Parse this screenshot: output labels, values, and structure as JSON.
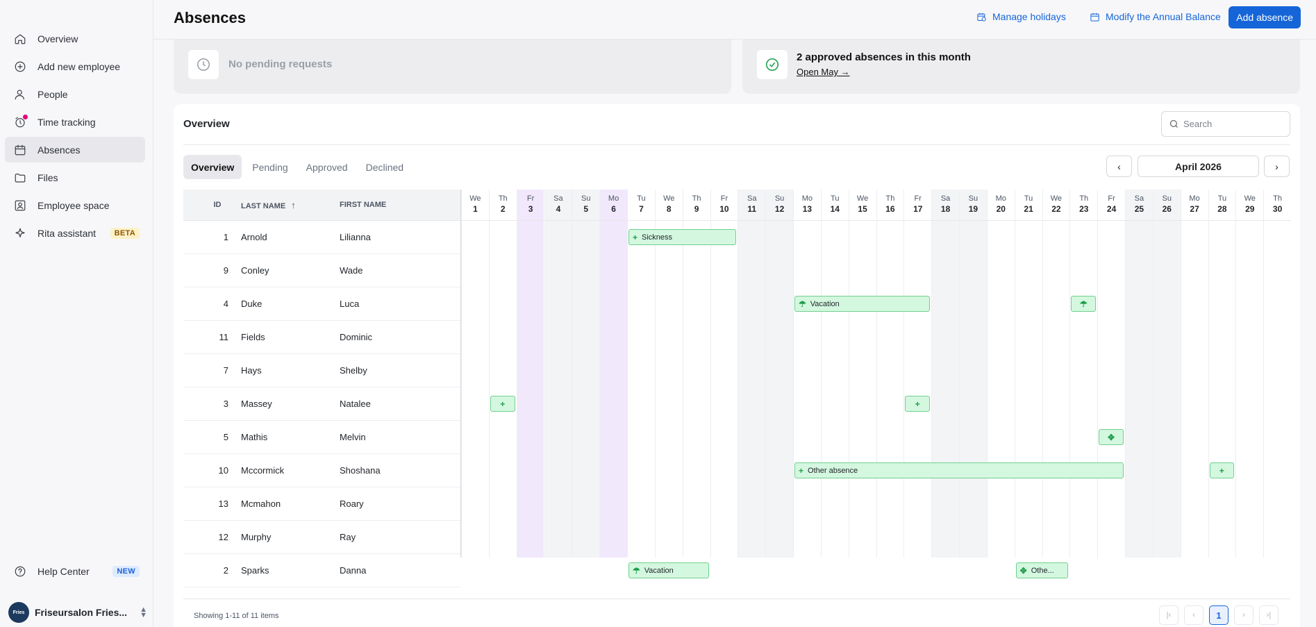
{
  "sidebar": {
    "items": [
      {
        "label": "Overview",
        "icon": "home-icon"
      },
      {
        "label": "Add new employee",
        "icon": "plus-circle-icon"
      },
      {
        "label": "People",
        "icon": "person-icon"
      },
      {
        "label": "Time tracking",
        "icon": "alarm-clock-icon"
      },
      {
        "label": "Absences",
        "icon": "calendar-icon"
      },
      {
        "label": "Files",
        "icon": "folder-icon"
      },
      {
        "label": "Employee space",
        "icon": "id-badge-icon"
      },
      {
        "label": "Rita assistant",
        "icon": "sparkle-icon",
        "badge": "BETA"
      }
    ],
    "help": {
      "label": "Help Center",
      "badge": "NEW"
    },
    "org": {
      "name": "Friseursalon Fries...",
      "logo_text": "Fries"
    }
  },
  "header": {
    "title": "Absences",
    "manage_holidays": "Manage holidays",
    "modify_balance": "Modify the Annual Balance",
    "add_absence": "Add absence"
  },
  "cards": {
    "pending": "No pending requests",
    "approved": "2 approved absences in this month",
    "open_link": "Open May →"
  },
  "overview": {
    "title": "Overview",
    "search_placeholder": "Search",
    "tabs": [
      "Overview",
      "Pending",
      "Approved",
      "Declined"
    ],
    "month": "April 2026",
    "columns": {
      "id": "ID",
      "last_name": "LAST NAME",
      "first_name": "FIRST NAME"
    },
    "rows": [
      {
        "id": "1",
        "last": "Arnold",
        "first": "Lilianna"
      },
      {
        "id": "9",
        "last": "Conley",
        "first": "Wade"
      },
      {
        "id": "4",
        "last": "Duke",
        "first": "Luca"
      },
      {
        "id": "11",
        "last": "Fields",
        "first": "Dominic"
      },
      {
        "id": "7",
        "last": "Hays",
        "first": "Shelby"
      },
      {
        "id": "3",
        "last": "Massey",
        "first": "Natalee"
      },
      {
        "id": "5",
        "last": "Mathis",
        "first": "Melvin"
      },
      {
        "id": "10",
        "last": "Mccormick",
        "first": "Shoshana"
      },
      {
        "id": "13",
        "last": "Mcmahon",
        "first": "Roary"
      },
      {
        "id": "12",
        "last": "Murphy",
        "first": "Ray"
      },
      {
        "id": "2",
        "last": "Sparks",
        "first": "Danna"
      }
    ],
    "days": [
      {
        "dw": "We",
        "dn": "1"
      },
      {
        "dw": "Th",
        "dn": "2"
      },
      {
        "dw": "Fr",
        "dn": "3",
        "holiday": true
      },
      {
        "dw": "Sa",
        "dn": "4",
        "weekend": true
      },
      {
        "dw": "Su",
        "dn": "5",
        "weekend": true
      },
      {
        "dw": "Mo",
        "dn": "6",
        "holiday": true
      },
      {
        "dw": "Tu",
        "dn": "7"
      },
      {
        "dw": "We",
        "dn": "8"
      },
      {
        "dw": "Th",
        "dn": "9"
      },
      {
        "dw": "Fr",
        "dn": "10"
      },
      {
        "dw": "Sa",
        "dn": "11",
        "weekend": true
      },
      {
        "dw": "Su",
        "dn": "12",
        "weekend": true
      },
      {
        "dw": "Mo",
        "dn": "13"
      },
      {
        "dw": "Tu",
        "dn": "14"
      },
      {
        "dw": "We",
        "dn": "15"
      },
      {
        "dw": "Th",
        "dn": "16"
      },
      {
        "dw": "Fr",
        "dn": "17"
      },
      {
        "dw": "Sa",
        "dn": "18",
        "weekend": true
      },
      {
        "dw": "Su",
        "dn": "19",
        "weekend": true
      },
      {
        "dw": "Mo",
        "dn": "20"
      },
      {
        "dw": "Tu",
        "dn": "21"
      },
      {
        "dw": "We",
        "dn": "22"
      },
      {
        "dw": "Th",
        "dn": "23"
      },
      {
        "dw": "Fr",
        "dn": "24"
      },
      {
        "dw": "Sa",
        "dn": "25",
        "weekend": true
      },
      {
        "dw": "Su",
        "dn": "26",
        "weekend": true
      },
      {
        "dw": "Mo",
        "dn": "27"
      },
      {
        "dw": "Tu",
        "dn": "28"
      },
      {
        "dw": "We",
        "dn": "29"
      },
      {
        "dw": "Th",
        "dn": "30"
      }
    ],
    "events": [
      {
        "row": 0,
        "start": 7,
        "end": 10,
        "label": "Sickness",
        "icon": "plus-icon"
      },
      {
        "row": 2,
        "start": 13,
        "end": 17,
        "label": "Vacation",
        "icon": "umbrella-icon"
      },
      {
        "row": 2,
        "start": 23,
        "end": 23,
        "label": "",
        "icon": "umbrella-icon"
      },
      {
        "row": 5,
        "start": 2,
        "end": 2,
        "label": "",
        "icon": "plus-icon"
      },
      {
        "row": 5,
        "start": 17,
        "end": 17,
        "label": "",
        "icon": "plus-icon"
      },
      {
        "row": 6,
        "start": 24,
        "end": 24,
        "label": "",
        "icon": "puzzle-icon"
      },
      {
        "row": 7,
        "start": 13,
        "end": 24,
        "label": "Other absence",
        "icon": "plus-icon"
      },
      {
        "row": 7,
        "start": 28,
        "end": 28,
        "label": "",
        "icon": "plus-icon"
      },
      {
        "row": 10,
        "start": 7,
        "end": 9,
        "label": "Vacation",
        "icon": "umbrella-icon"
      },
      {
        "row": 10,
        "start": 21,
        "end": 22,
        "label": "Othe...",
        "icon": "puzzle-icon"
      }
    ],
    "showing": "Showing 1-11 of 11 items",
    "page": "1"
  },
  "colors": {
    "accent": "#1565d8",
    "event_bg": "#d4f7df",
    "event_border": "#6fcf8f",
    "holiday": "#f1e8fc",
    "weekend": "#f3f4f6"
  }
}
